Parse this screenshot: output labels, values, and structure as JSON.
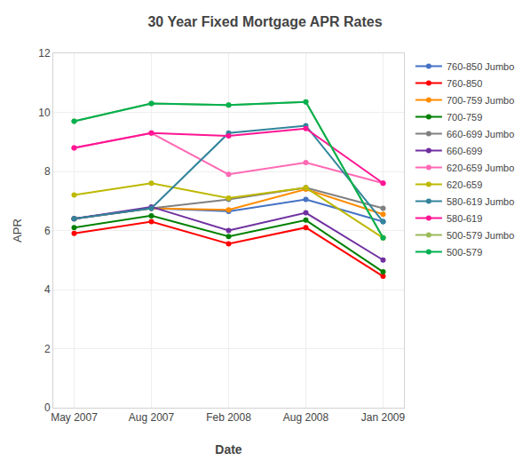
{
  "chart_data": {
    "type": "line",
    "title": "30 Year Fixed Mortgage APR Rates",
    "xlabel": "Date",
    "ylabel": "APR",
    "categories": [
      "May 2007",
      "Aug 2007",
      "Feb 2008",
      "Aug 2008",
      "Jan 2009"
    ],
    "ylim": [
      0,
      12
    ],
    "yticks": [
      0,
      2,
      4,
      6,
      8,
      10,
      12
    ],
    "grid": true,
    "legend": "right",
    "marker": "circle",
    "line_style": "solid",
    "series": [
      {
        "name": "760-850 Jumbo",
        "color": "#4472C4",
        "values": [
          6.4,
          6.75,
          6.65,
          7.05,
          6.3
        ]
      },
      {
        "name": "760-850",
        "color": "#FF0000",
        "values": [
          5.9,
          6.3,
          5.55,
          6.1,
          4.45
        ]
      },
      {
        "name": "700-759 Jumbo",
        "color": "#FF8C00",
        "values": [
          6.4,
          6.75,
          6.7,
          7.4,
          6.55
        ]
      },
      {
        "name": "700-759",
        "color": "#008000",
        "values": [
          6.1,
          6.5,
          5.8,
          6.35,
          4.6
        ]
      },
      {
        "name": "660-699 Jumbo",
        "color": "#808080",
        "values": [
          6.4,
          6.75,
          7.05,
          7.45,
          6.75
        ]
      },
      {
        "name": "660-699",
        "color": "#7030A0",
        "values": [
          6.4,
          6.8,
          6.0,
          6.6,
          5.0
        ]
      },
      {
        "name": "620-659 Jumbo",
        "color": "#FF69B4",
        "values": [
          8.8,
          9.3,
          7.9,
          8.3,
          7.6
        ]
      },
      {
        "name": "620-659",
        "color": "#BDB800",
        "values": [
          7.2,
          7.6,
          7.1,
          7.45,
          5.75
        ]
      },
      {
        "name": "580-619 Jumbo",
        "color": "#31849B",
        "values": [
          6.4,
          6.75,
          9.3,
          9.55,
          6.3
        ]
      },
      {
        "name": "580-619",
        "color": "#FF1493",
        "values": [
          8.8,
          9.3,
          9.2,
          9.45,
          7.6
        ]
      },
      {
        "name": "500-579 Jumbo",
        "color": "#9BBB59",
        "values": [
          9.7,
          10.3,
          10.25,
          10.35,
          5.75
        ]
      },
      {
        "name": "500-579",
        "color": "#00B050",
        "values": [
          9.7,
          10.3,
          10.25,
          10.35,
          5.75
        ]
      }
    ]
  }
}
